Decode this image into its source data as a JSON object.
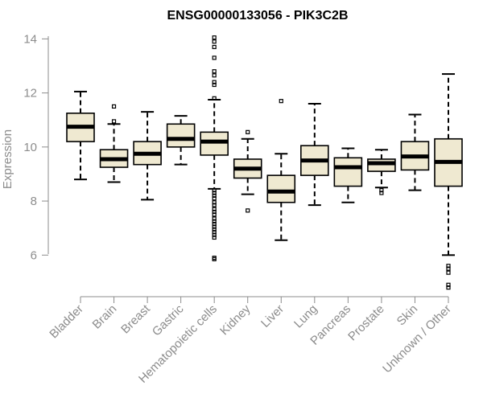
{
  "chart_data": {
    "type": "boxplot",
    "title": "ENSG00000133056 - PIK3C2B",
    "xlabel": "",
    "ylabel": "Expression",
    "ylim": [
      4.7,
      14.1
    ],
    "yticks": [
      6,
      8,
      10,
      12,
      14
    ],
    "colors": {
      "box_fill": "#efe9d1",
      "line": "#000000",
      "axis": "#8c8c8c"
    },
    "categories": [
      "Bladder",
      "Brain",
      "Breast",
      "Gastric",
      "Hematopoietic cells",
      "Kidney",
      "Liver",
      "Lung",
      "Pancreas",
      "Prostate",
      "Skin",
      "Unknown / Other"
    ],
    "boxes": [
      {
        "name": "Bladder",
        "whisker_low": 8.8,
        "q1": 10.2,
        "median": 10.75,
        "q3": 11.25,
        "whisker_high": 12.05,
        "outliers": []
      },
      {
        "name": "Brain",
        "whisker_low": 8.7,
        "q1": 9.25,
        "median": 9.55,
        "q3": 9.9,
        "whisker_high": 10.85,
        "outliers": [
          10.95,
          11.5
        ]
      },
      {
        "name": "Breast",
        "whisker_low": 8.05,
        "q1": 9.35,
        "median": 9.75,
        "q3": 10.2,
        "whisker_high": 11.3,
        "outliers": []
      },
      {
        "name": "Gastric",
        "whisker_low": 9.35,
        "q1": 10.0,
        "median": 10.3,
        "q3": 10.85,
        "whisker_high": 11.15,
        "outliers": []
      },
      {
        "name": "Hematopoietic cells",
        "whisker_low": 8.45,
        "q1": 9.7,
        "median": 10.2,
        "q3": 10.55,
        "whisker_high": 11.75,
        "outliers": [
          14.05,
          13.9,
          13.7,
          13.3,
          12.8,
          12.65,
          12.4,
          12.3,
          11.8,
          8.4,
          8.3,
          8.2,
          8.1,
          7.95,
          7.85,
          7.7,
          7.6,
          7.5,
          7.35,
          7.25,
          7.15,
          7.05,
          6.95,
          6.85,
          6.75,
          6.65,
          5.9,
          5.85
        ]
      },
      {
        "name": "Kidney",
        "whisker_low": 8.25,
        "q1": 8.85,
        "median": 9.2,
        "q3": 9.55,
        "whisker_high": 10.3,
        "outliers": [
          10.55,
          7.65
        ]
      },
      {
        "name": "Liver",
        "whisker_low": 6.55,
        "q1": 7.95,
        "median": 8.35,
        "q3": 8.95,
        "whisker_high": 9.75,
        "outliers": [
          11.7
        ]
      },
      {
        "name": "Lung",
        "whisker_low": 7.85,
        "q1": 8.95,
        "median": 9.5,
        "q3": 10.05,
        "whisker_high": 11.6,
        "outliers": []
      },
      {
        "name": "Pancreas",
        "whisker_low": 7.95,
        "q1": 8.55,
        "median": 9.25,
        "q3": 9.6,
        "whisker_high": 9.95,
        "outliers": []
      },
      {
        "name": "Prostate",
        "whisker_low": 8.5,
        "q1": 9.1,
        "median": 9.4,
        "q3": 9.55,
        "whisker_high": 9.9,
        "outliers": [
          8.4,
          8.3
        ]
      },
      {
        "name": "Skin",
        "whisker_low": 8.4,
        "q1": 9.15,
        "median": 9.65,
        "q3": 10.2,
        "whisker_high": 11.2,
        "outliers": []
      },
      {
        "name": "Unknown / Other",
        "whisker_low": 6.0,
        "q1": 8.55,
        "median": 9.45,
        "q3": 10.3,
        "whisker_high": 12.7,
        "outliers": [
          5.6,
          5.5,
          5.35,
          4.9,
          4.8
        ]
      }
    ]
  }
}
